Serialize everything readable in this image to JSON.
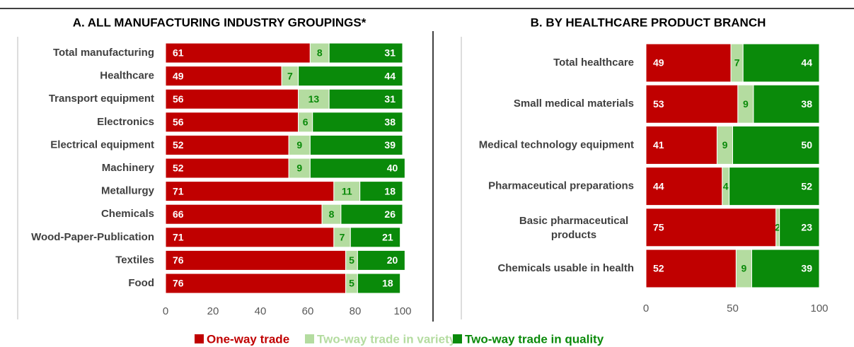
{
  "chart_data": [
    {
      "type": "stacked-bar",
      "title": "A. ALL MANUFACTURING INDUSTRY GROUPINGS*",
      "categories": [
        "Total manufacturing",
        "Healthcare",
        "Transport equipment",
        "Electronics",
        "Electrical equipment",
        "Machinery",
        "Metallurgy",
        "Chemicals",
        "Wood-Paper-Publication",
        "Textiles",
        "Food"
      ],
      "series": [
        {
          "name": "One-way trade",
          "color": "#c00000",
          "values": [
            61,
            49,
            56,
            56,
            52,
            52,
            71,
            66,
            71,
            76,
            76
          ]
        },
        {
          "name": "Two-way trade in variety",
          "color": "#b4dca0",
          "values": [
            8,
            7,
            13,
            6,
            9,
            9,
            11,
            8,
            7,
            5,
            5
          ]
        },
        {
          "name": "Two-way trade in quality",
          "color": "#0a8a0a",
          "values": [
            31,
            44,
            31,
            38,
            39,
            40,
            18,
            26,
            21,
            20,
            18
          ]
        }
      ],
      "xlim": [
        0,
        100
      ],
      "xticks": [
        0,
        20,
        40,
        60,
        80,
        100
      ]
    },
    {
      "type": "stacked-bar",
      "title": "B. BY HEALTHCARE PRODUCT BRANCH",
      "categories": [
        "Total healthcare",
        "Small medical materials",
        "Medical technology equipment",
        "Pharmaceutical preparations",
        "Basic pharmaceutical products",
        "Chemicals usable in health"
      ],
      "series": [
        {
          "color": "#c00000",
          "values": [
            49,
            53,
            41,
            44,
            75,
            52
          ]
        },
        {
          "color": "#b4dca0",
          "values": [
            7,
            9,
            9,
            4,
            2,
            9
          ]
        },
        {
          "color": "#0a8a0a",
          "values": [
            44,
            38,
            50,
            52,
            23,
            39
          ]
        }
      ],
      "xlim": [
        0,
        100
      ],
      "xticks": [
        0,
        50,
        100
      ]
    }
  ]
}
